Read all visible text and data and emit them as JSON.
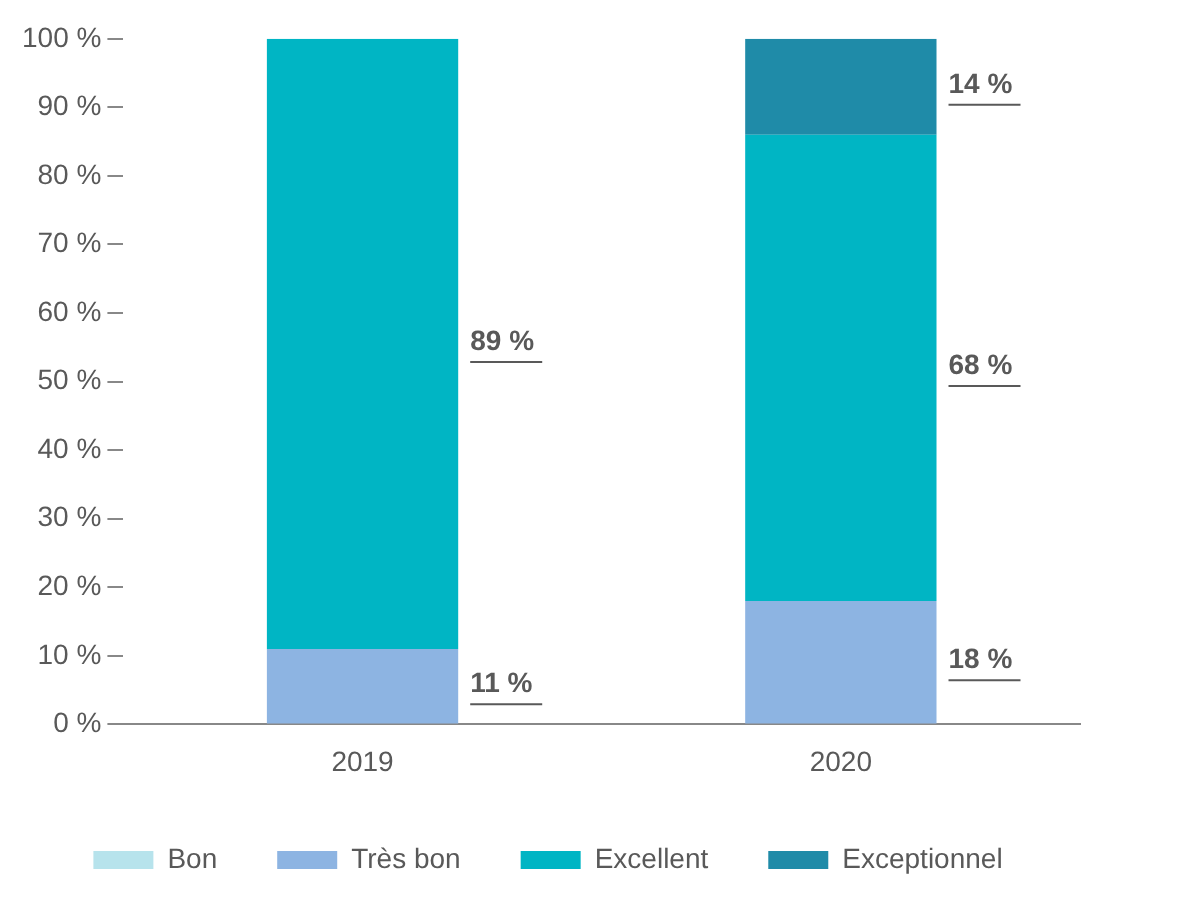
{
  "chart_data": {
    "type": "bar",
    "stacked": true,
    "categories": [
      "2019",
      "2020"
    ],
    "series": [
      {
        "name": "Bon",
        "color": "#b7e3ec",
        "values": [
          0,
          0
        ],
        "value_labels": [
          null,
          null
        ]
      },
      {
        "name": "Très bon",
        "color": "#8db4e2",
        "values": [
          11,
          18
        ],
        "value_labels": [
          "11 %",
          "18 %"
        ]
      },
      {
        "name": "Excellent",
        "color": "#00b5c4",
        "values": [
          89,
          68
        ],
        "value_labels": [
          "89 %",
          "68 %"
        ]
      },
      {
        "name": "Exceptionnel",
        "color": "#1f8ba8",
        "values": [
          0,
          14
        ],
        "value_labels": [
          null,
          "14 %"
        ]
      }
    ],
    "ylim": [
      0,
      100
    ],
    "yticks": [
      {
        "value": 0,
        "label": "0 %"
      },
      {
        "value": 10,
        "label": "10 %"
      },
      {
        "value": 20,
        "label": "20 %"
      },
      {
        "value": 30,
        "label": "30 %"
      },
      {
        "value": 40,
        "label": "40 %"
      },
      {
        "value": 50,
        "label": "50 %"
      },
      {
        "value": 60,
        "label": "60 %"
      },
      {
        "value": 70,
        "label": "70 %"
      },
      {
        "value": 80,
        "label": "80 %"
      },
      {
        "value": 90,
        "label": "90 %"
      },
      {
        "value": 100,
        "label": "100 %"
      }
    ],
    "grid": false,
    "legend": "bottom"
  }
}
